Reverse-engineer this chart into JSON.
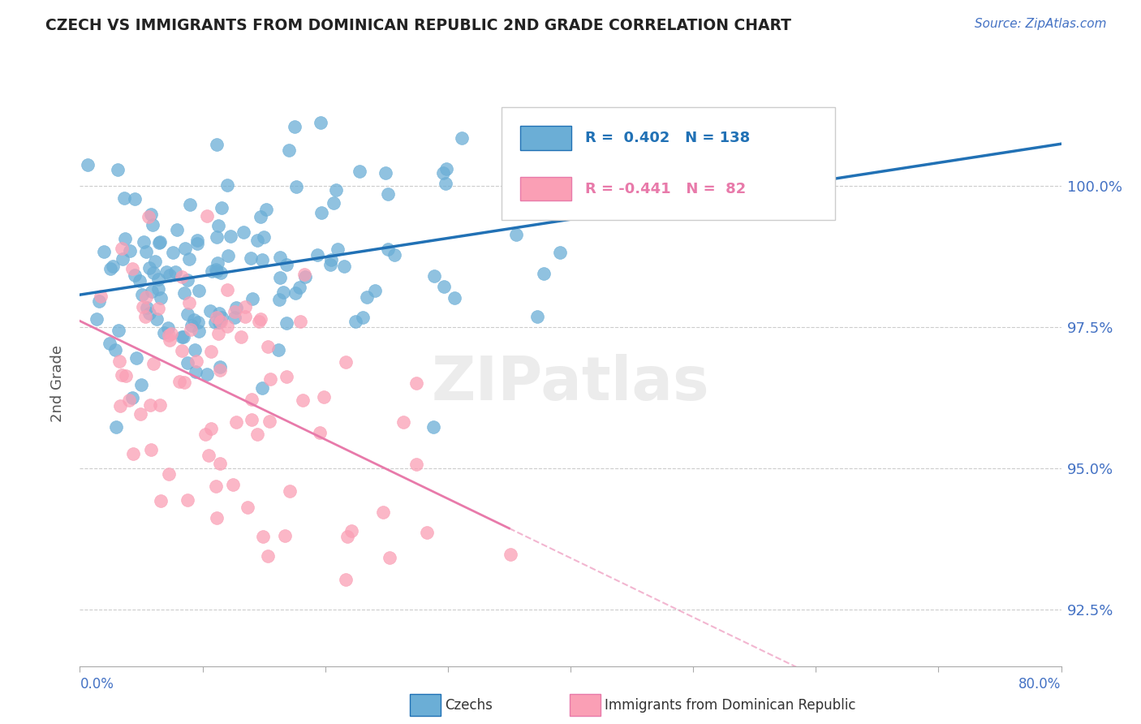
{
  "title": "CZECH VS IMMIGRANTS FROM DOMINICAN REPUBLIC 2ND GRADE CORRELATION CHART",
  "source_text": "Source: ZipAtlas.com",
  "ylabel": "2nd Grade",
  "xlim": [
    0.0,
    80.0
  ],
  "ylim": [
    91.5,
    101.5
  ],
  "yticks": [
    92.5,
    95.0,
    97.5,
    100.0
  ],
  "ytick_labels": [
    "92.5%",
    "95.0%",
    "97.5%",
    "100.0%"
  ],
  "czechs_color": "#6baed6",
  "dominican_color": "#fa9fb5",
  "czechs_line_color": "#2171b5",
  "dominican_line_color": "#e87aaa",
  "czechs_R": 0.402,
  "czechs_N": 138,
  "dominican_R": -0.441,
  "dominican_N": 82,
  "legend_label_czechs": "Czechs",
  "legend_label_dominican": "Immigrants from Dominican Republic",
  "watermark_text": "ZIPatlas",
  "title_color": "#222222",
  "axis_label_color": "#4472c4",
  "grid_color": "#cccccc",
  "background_color": "#ffffff",
  "czechs_seed": 42,
  "dominican_seed": 7
}
